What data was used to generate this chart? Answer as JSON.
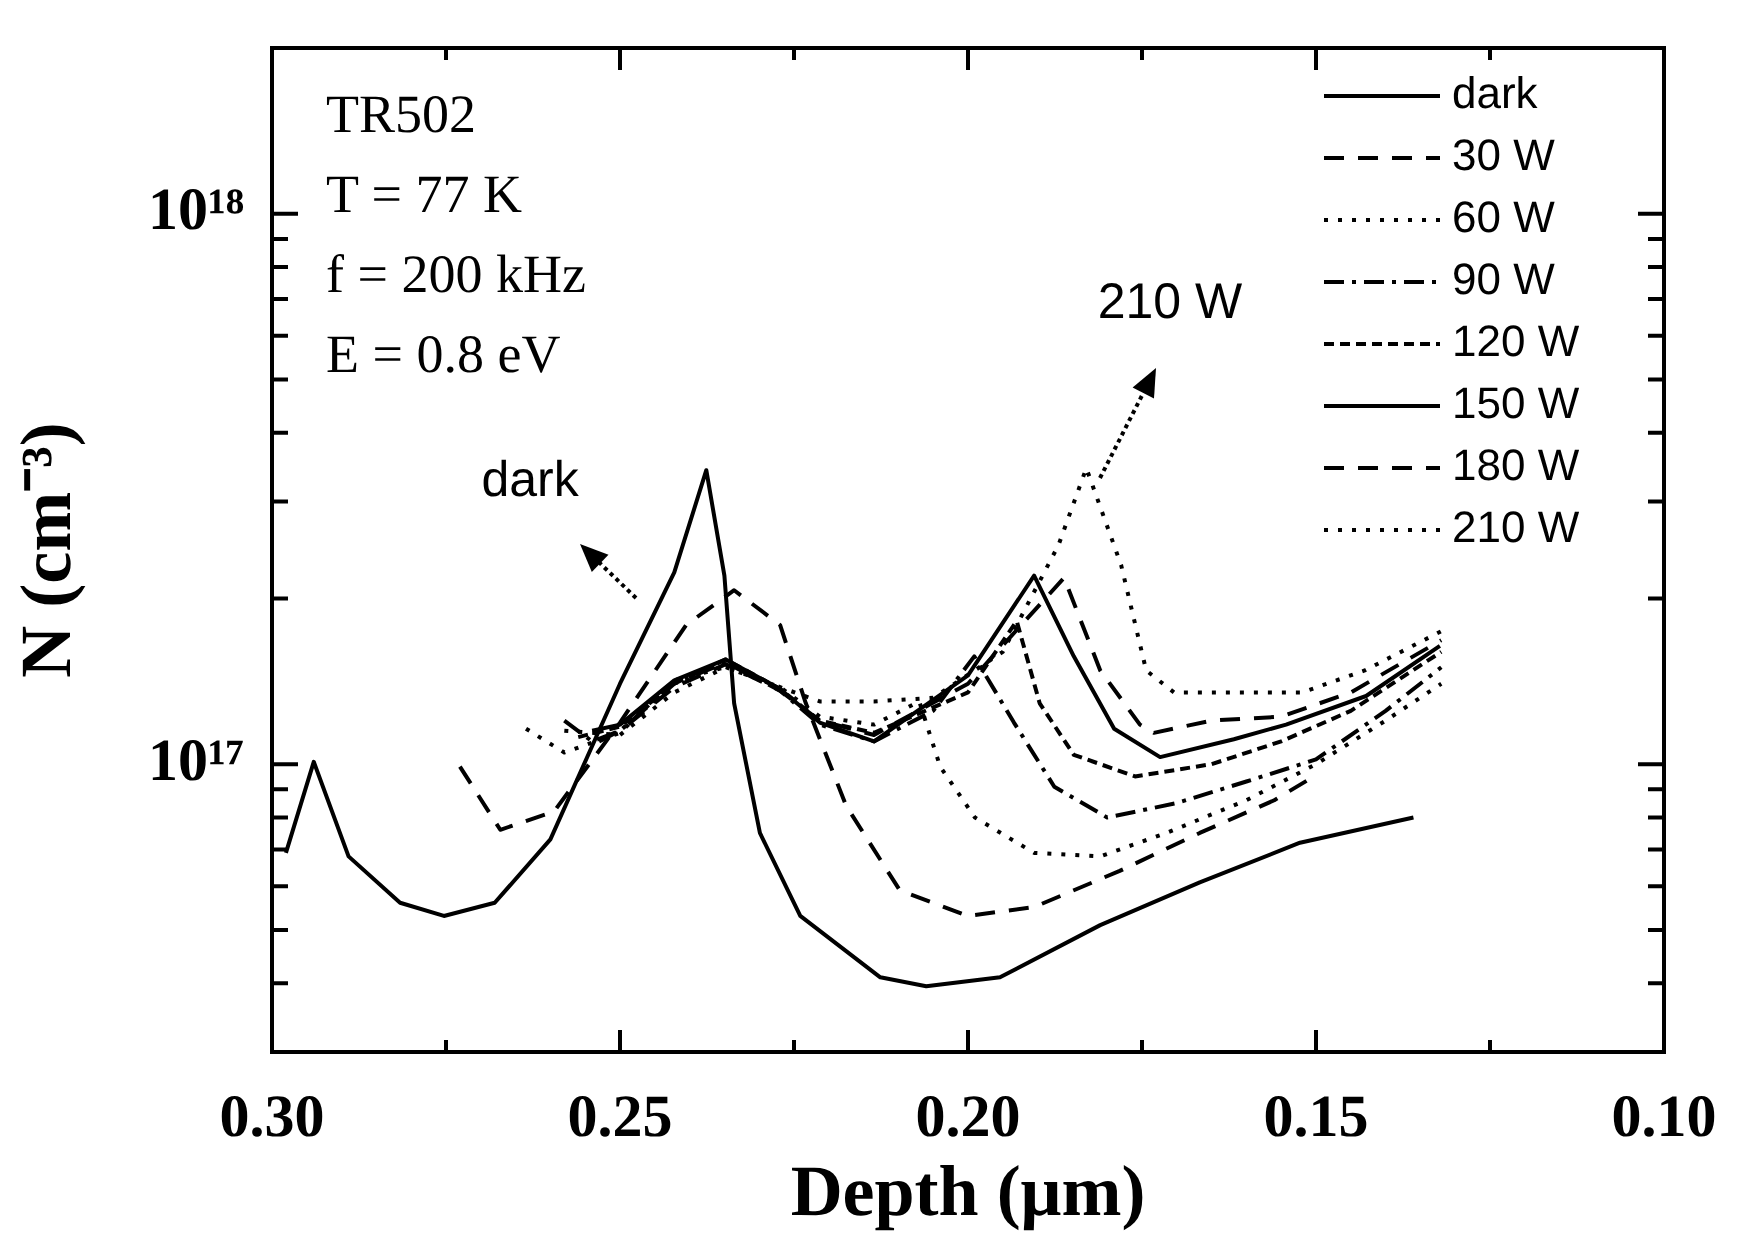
{
  "chart_data": {
    "type": "line",
    "xlabel": "Depth (μm)",
    "ylabel": "N (cm⁻³)",
    "log": "y",
    "grid": false,
    "legend": "top right",
    "xlim": [
      0.3,
      0.1
    ],
    "xticks": [
      {
        "value": 0.3,
        "label": "0.30"
      },
      {
        "value": 0.275,
        "label": null
      },
      0.25,
      {
        "value": 0.225,
        "label": null
      },
      {
        "value": 0.2,
        "label": "0.20"
      },
      {
        "value": 0.175,
        "label": null
      },
      0.15,
      {
        "value": 0.125,
        "label": null
      },
      {
        "value": 0.1,
        "label": "0.10"
      }
    ],
    "ylim": [
      3e+16,
      2e+18
    ],
    "yticks": [
      {
        "value": 3e+16,
        "label": null
      },
      {
        "value": 4e+16,
        "label": null
      },
      {
        "value": 5e+16,
        "label": null
      },
      {
        "value": 6e+16,
        "label": null
      },
      {
        "value": 7e+16,
        "label": null
      },
      {
        "value": 8e+16,
        "label": null
      },
      {
        "value": 9e+16,
        "label": null
      },
      {
        "value": 1e+17,
        "label": "10¹⁷"
      },
      {
        "value": 2e+17,
        "label": null
      },
      {
        "value": 3e+17,
        "label": null
      },
      {
        "value": 4e+17,
        "label": null
      },
      {
        "value": 5e+17,
        "label": null
      },
      {
        "value": 6e+17,
        "label": null
      },
      {
        "value": 7e+17,
        "label": null
      },
      {
        "value": 8e+17,
        "label": null
      },
      {
        "value": 9e+17,
        "label": null
      },
      {
        "value": 1e+18,
        "label": "10¹⁸"
      },
      {
        "value": 2e+18,
        "label": null
      }
    ],
    "annotations": [
      "TR502",
      "T = 77 K",
      "f = 200 kHz",
      "E = 0.8 eV",
      "dark",
      "210 W"
    ],
    "series": [
      {
        "name": "dark",
        "color": "#000000",
        "line_style": "solid",
        "x": [
          0.298,
          0.294,
          0.289,
          0.2816,
          0.2753,
          0.268,
          0.26,
          0.25,
          0.2422,
          0.2376,
          0.235,
          0.2336,
          0.2299,
          0.2241,
          0.2126,
          0.206,
          0.1954,
          0.181,
          0.1667,
          0.1523,
          0.136
        ],
        "values": [
          6.9e+16,
          1.01e+17,
          6.8e+16,
          5.6e+16,
          5.3e+16,
          5.6e+16,
          7.3e+16,
          1.4e+17,
          2.23e+17,
          3.42e+17,
          2.2e+17,
          1.29e+17,
          7.5e+16,
          5.3e+16,
          4.1e+16,
          3.95e+16,
          4.1e+16,
          5.1e+16,
          6.1e+16,
          7.2e+16,
          8e+16
        ]
      },
      {
        "name": "30 W",
        "color": "#000000",
        "line_style": "dashed",
        "x": [
          0.273,
          0.2672,
          0.2595,
          0.25,
          0.2405,
          0.2336,
          0.227,
          0.2233,
          0.2175,
          0.2098,
          0.2,
          0.1905,
          0.1782,
          0.1667,
          0.156,
          0.1503
        ],
        "values": [
          9.9e+16,
          7.6e+16,
          8.2e+16,
          1.19e+17,
          1.79e+17,
          2.07e+17,
          1.79e+17,
          1.29e+17,
          8.4e+16,
          5.9e+16,
          5.3e+16,
          5.5e+16,
          6.4e+16,
          7.5e+16,
          8.6e+16,
          9.5e+16
        ]
      },
      {
        "name": "60 W",
        "color": "#000000",
        "line_style": "dotted",
        "x": [
          0.2635,
          0.258,
          0.25,
          0.2422,
          0.2348,
          0.227,
          0.2213,
          0.2135,
          0.207,
          0.204,
          0.199,
          0.1905,
          0.181,
          0.1715,
          0.16,
          0.15,
          0.14,
          0.132
        ],
        "values": [
          1.16e+17,
          1.05e+17,
          1.14e+17,
          1.42e+17,
          1.5e+17,
          1.38e+17,
          1.22e+17,
          1.18e+17,
          1.3e+17,
          9.9e+16,
          8e+16,
          6.9e+16,
          6.8e+16,
          7.5e+16,
          8.6e+16,
          1e+17,
          1.2e+17,
          1.4e+17
        ]
      },
      {
        "name": "90 W",
        "color": "#000000",
        "line_style": "dashdot",
        "x": [
          0.258,
          0.254,
          0.25,
          0.2422,
          0.2348,
          0.227,
          0.2213,
          0.2135,
          0.205,
          0.1991,
          0.1934,
          0.1876,
          0.18,
          0.17,
          0.16,
          0.15,
          0.14,
          0.132
        ],
        "values": [
          1.2e+17,
          1.1e+17,
          1.15e+17,
          1.4e+17,
          1.53e+17,
          1.36e+17,
          1.18e+17,
          1.1e+17,
          1.25e+17,
          1.57e+17,
          1.19e+17,
          9.1e+16,
          8e+16,
          8.5e+16,
          9.3e+16,
          1.02e+17,
          1.25e+17,
          1.5e+17
        ]
      },
      {
        "name": "120 W",
        "color": "#000000",
        "line_style": "shortdash",
        "x": [
          0.256,
          0.25,
          0.2422,
          0.2348,
          0.227,
          0.2213,
          0.2135,
          0.2,
          0.193,
          0.1897,
          0.1848,
          0.176,
          0.165,
          0.155,
          0.145,
          0.132
        ],
        "values": [
          1.12e+17,
          1.17e+17,
          1.4e+17,
          1.55e+17,
          1.37e+17,
          1.2e+17,
          1.14e+17,
          1.35e+17,
          1.82e+17,
          1.29e+17,
          1.04e+17,
          9.5e+16,
          1e+17,
          1.1e+17,
          1.25e+17,
          1.6e+17
        ]
      },
      {
        "name": "150 W",
        "color": "#000000",
        "line_style": "solid",
        "x": [
          0.254,
          0.25,
          0.2422,
          0.2348,
          0.227,
          0.2213,
          0.2135,
          0.2,
          0.1905,
          0.1848,
          0.179,
          0.1724,
          0.1618,
          0.1543,
          0.1428,
          0.1322
        ],
        "values": [
          1.15e+17,
          1.18e+17,
          1.42e+17,
          1.55e+17,
          1.37e+17,
          1.19e+17,
          1.1e+17,
          1.45e+17,
          2.2e+17,
          1.57e+17,
          1.16e+17,
          1.03e+17,
          1.11e+17,
          1.18e+17,
          1.33e+17,
          1.64e+17
        ]
      },
      {
        "name": "180 W",
        "color": "#000000",
        "line_style": "dashed",
        "x": [
          0.253,
          0.25,
          0.2422,
          0.2348,
          0.227,
          0.2213,
          0.2135,
          0.2,
          0.1862,
          0.181,
          0.1753,
          0.1733,
          0.165,
          0.155,
          0.145,
          0.132
        ],
        "values": [
          1.1e+17,
          1.15e+17,
          1.38e+17,
          1.52e+17,
          1.36e+17,
          1.2e+17,
          1.13e+17,
          1.4e+17,
          2.18e+17,
          1.48e+17,
          1.18e+17,
          1.14e+17,
          1.2e+17,
          1.22e+17,
          1.35e+17,
          1.68e+17
        ]
      },
      {
        "name": "210 W",
        "color": "#000000",
        "line_style": "dotted",
        "x": [
          0.258,
          0.25,
          0.2422,
          0.2348,
          0.227,
          0.2213,
          0.2135,
          0.205,
          0.195,
          0.187,
          0.183,
          0.178,
          0.1744,
          0.1704,
          0.162,
          0.152,
          0.143,
          0.131
        ],
        "values": [
          1.15e+17,
          1.13e+17,
          1.35e+17,
          1.5e+17,
          1.38e+17,
          1.3e+17,
          1.3e+17,
          1.32e+17,
          1.6e+17,
          2.5e+17,
          3.45e+17,
          2.3e+17,
          1.48e+17,
          1.35e+17,
          1.35e+17,
          1.35e+17,
          1.48e+17,
          1.77e+17
        ]
      }
    ]
  }
}
